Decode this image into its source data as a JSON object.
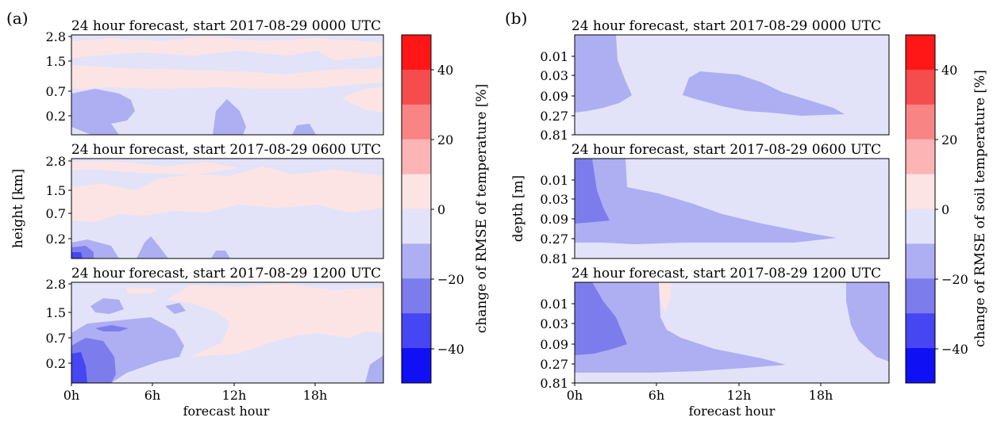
{
  "colors": {
    "scale": [
      "#1010f5",
      "#4646f2",
      "#7c7ced",
      "#aeaef3",
      "#e2e3f8",
      "#fde4e4",
      "#fcb4b4",
      "#f98484",
      "#f54d4d",
      "#ff1616"
    ],
    "hatch_levels": [
      -50,
      -40,
      -30,
      -20,
      -10,
      0,
      10,
      20,
      30,
      40,
      50
    ]
  },
  "chart_data": [
    {
      "panel_label": "(a)",
      "type": "heatmap",
      "ylabel": "height [km]",
      "xlabel": "forecast hour",
      "x_ticks": [
        "0h",
        "6h",
        "12h",
        "18h"
      ],
      "x_tick_values": [
        0,
        6,
        12,
        18
      ],
      "xlim": [
        0,
        23
      ],
      "y_ticks": [
        "2.8",
        "1.5",
        "0.7",
        "0.2"
      ],
      "colorbar": {
        "label": "change of RMSE of temperature [%]",
        "ticks": [
          "40",
          "20",
          "0",
          "−20",
          "−40"
        ],
        "tick_values": [
          40,
          20,
          0,
          -20,
          -40
        ],
        "range": [
          -50,
          50
        ]
      },
      "subplots": [
        {
          "title": "24 hour forecast, start 2017-08-29 0000 UTC"
        },
        {
          "title": "24 hour forecast, start 2017-08-29 0600 UTC"
        },
        {
          "title": "24 hour forecast, start 2017-08-29 1200 UTC"
        }
      ]
    },
    {
      "panel_label": "(b)",
      "type": "heatmap",
      "ylabel": "depth [m]",
      "xlabel": "forecast hour",
      "x_ticks": [
        "0h",
        "6h",
        "12h",
        "18h"
      ],
      "x_tick_values": [
        0,
        6,
        12,
        18
      ],
      "xlim": [
        0,
        23
      ],
      "y_ticks": [
        "0.01",
        "0.03",
        "0.09",
        "0.27",
        "0.81"
      ],
      "colorbar": {
        "label": "change of RMSE of soil temperature [%]",
        "ticks": [
          "40",
          "20",
          "0",
          "−20",
          "−40"
        ],
        "tick_values": [
          40,
          20,
          0,
          -20,
          -40
        ],
        "range": [
          -50,
          50
        ]
      },
      "subplots": [
        {
          "title": "24 hour forecast, start 2017-08-29 0000 UTC"
        },
        {
          "title": "24 hour forecast, start 2017-08-29 0600 UTC"
        },
        {
          "title": "24 hour forecast, start 2017-08-29 1200 UTC"
        }
      ]
    }
  ]
}
